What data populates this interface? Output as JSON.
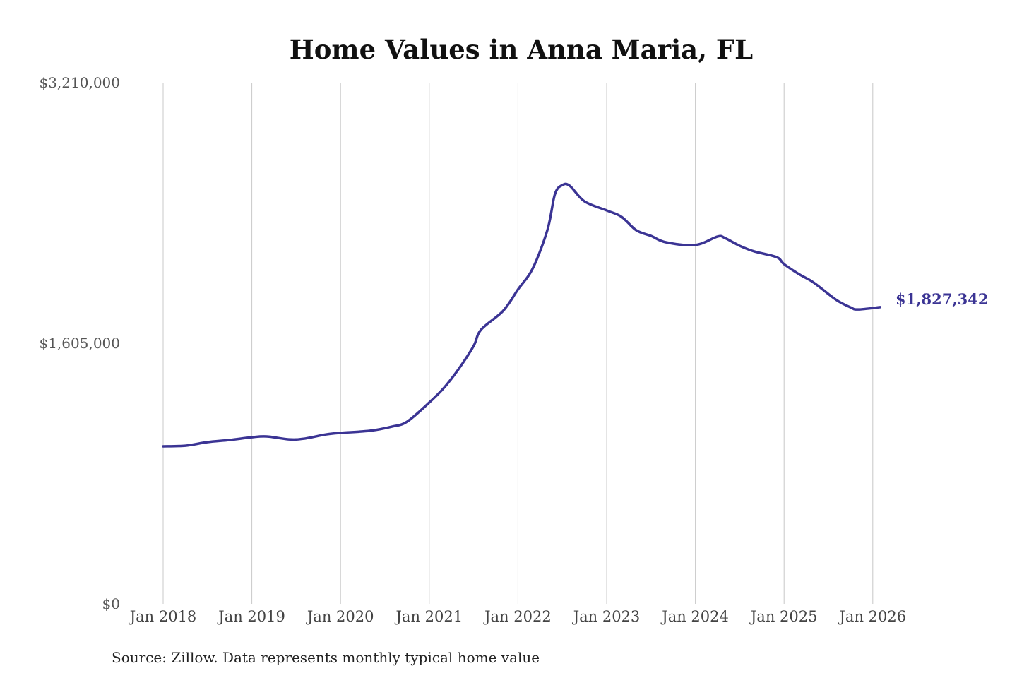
{
  "chart_data": {
    "type": "line",
    "title": "Home Values in Anna Maria, FL",
    "xlabel": "",
    "ylabel": "",
    "ylim": [
      0,
      3210000
    ],
    "y_ticks": [
      0,
      1605000,
      3210000
    ],
    "y_tick_labels": [
      "$0",
      "$1,605,000",
      "$3,210,000"
    ],
    "x_tick_labels": [
      "Jan 2018",
      "Jan 2019",
      "Jan 2020",
      "Jan 2021",
      "Jan 2022",
      "Jan 2023",
      "Jan 2024",
      "Jan 2025",
      "Jan 2026"
    ],
    "x_ticks": [
      "2018-01",
      "2019-01",
      "2020-01",
      "2021-01",
      "2022-01",
      "2023-01",
      "2024-01",
      "2025-01",
      "2026-01"
    ],
    "grid": "vertical",
    "line_color": "#3b3494",
    "end_label": "$1,827,342",
    "source": "Source: Zillow. Data represents monthly typical home value",
    "series": [
      {
        "x": [
          "2018-01",
          "2018-04",
          "2018-07",
          "2018-10",
          "2019-01",
          "2019-03",
          "2019-06",
          "2019-08",
          "2019-11",
          "2020-01",
          "2020-05",
          "2020-08",
          "2020-10",
          "2021-01",
          "2021-03",
          "2021-05",
          "2021-07",
          "2021-08",
          "2021-11",
          "2022-01",
          "2022-03",
          "2022-05",
          "2022-06",
          "2022-07",
          "2022-08",
          "2022-10",
          "2023-01",
          "2023-03",
          "2023-05",
          "2023-07",
          "2023-09",
          "2024-01",
          "2024-04",
          "2024-05",
          "2024-07",
          "2024-09",
          "2024-12",
          "2025-01",
          "2025-03",
          "2025-05",
          "2025-08",
          "2025-10",
          "2025-11",
          "2026-02"
        ],
        "values": [
          970000,
          974000,
          996000,
          1009000,
          1026000,
          1031000,
          1013000,
          1017000,
          1043000,
          1053000,
          1066000,
          1092000,
          1122000,
          1240000,
          1331000,
          1448000,
          1588000,
          1688000,
          1805000,
          1936000,
          2066000,
          2305000,
          2523000,
          2579000,
          2575000,
          2479000,
          2423000,
          2384000,
          2301000,
          2266000,
          2227000,
          2210000,
          2262000,
          2253000,
          2205000,
          2170000,
          2135000,
          2092000,
          2031000,
          1979000,
          1874000,
          1826000,
          1813000,
          1827342
        ]
      }
    ]
  }
}
